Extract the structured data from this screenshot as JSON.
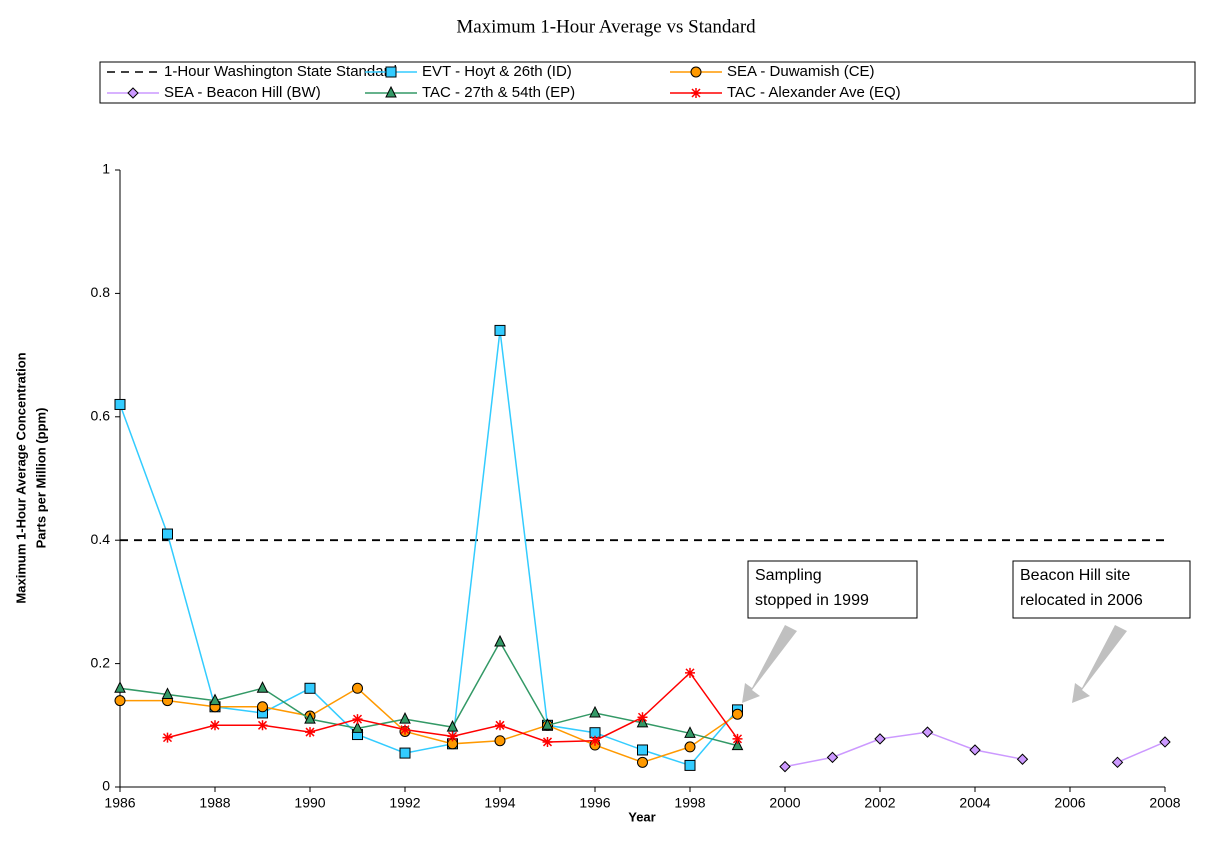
{
  "chart_data": {
    "type": "line",
    "title": "Maximum 1-Hour Average vs Standard",
    "xlabel": "Year",
    "ylabel": [
      "Maximum 1-Hour Average Concentration",
      "Parts per Million (ppm)"
    ],
    "x": [
      1986,
      1987,
      1988,
      1989,
      1990,
      1991,
      1992,
      1993,
      1994,
      1995,
      1996,
      1997,
      1998,
      1999,
      2000,
      2001,
      2002,
      2003,
      2004,
      2005,
      2006,
      2007,
      2008
    ],
    "xlim": [
      1986,
      2008
    ],
    "xticks": [
      1986,
      1988,
      1990,
      1992,
      1994,
      1996,
      1998,
      2000,
      2002,
      2004,
      2006,
      2008
    ],
    "ylim": [
      0,
      1
    ],
    "yticks": [
      0,
      0.2,
      0.4,
      0.6,
      0.8,
      1
    ],
    "series": [
      {
        "name": "1-Hour Washington State Standard",
        "color": "#000000",
        "dashed": true,
        "values": [
          0.4,
          0.4,
          0.4,
          0.4,
          0.4,
          0.4,
          0.4,
          0.4,
          0.4,
          0.4,
          0.4,
          0.4,
          0.4,
          0.4,
          0.4,
          0.4,
          0.4,
          0.4,
          0.4,
          0.4,
          0.4,
          0.4,
          0.4
        ]
      },
      {
        "name": "EVT - Hoyt & 26th (ID)",
        "color": "#33ccff",
        "marker": "square",
        "values": [
          0.62,
          0.41,
          0.13,
          0.12,
          0.16,
          0.085,
          0.055,
          0.07,
          0.74,
          0.1,
          0.088,
          0.06,
          0.035,
          0.125,
          null,
          null,
          null,
          null,
          null,
          null,
          null,
          null,
          null
        ]
      },
      {
        "name": "SEA - Duwamish (CE)",
        "color": "#ff9900",
        "marker": "circle",
        "values": [
          0.14,
          0.14,
          0.13,
          0.13,
          0.115,
          0.16,
          0.09,
          0.07,
          0.075,
          0.1,
          0.068,
          0.04,
          0.065,
          0.118,
          null,
          null,
          null,
          null,
          null,
          null,
          null,
          null,
          null
        ]
      },
      {
        "name": "SEA - Beacon Hill (BW)",
        "color": "#cc99ff",
        "marker": "diamond",
        "values": [
          null,
          null,
          null,
          null,
          null,
          null,
          null,
          null,
          null,
          null,
          null,
          null,
          null,
          null,
          0.033,
          0.048,
          0.078,
          0.089,
          0.06,
          0.045,
          null,
          0.04,
          0.073
        ]
      },
      {
        "name": "TAC - 27th & 54th (EP)",
        "color": "#339966",
        "marker": "triangle",
        "values": [
          0.16,
          0.15,
          0.14,
          0.16,
          0.11,
          0.095,
          0.11,
          0.097,
          0.235,
          0.1,
          0.12,
          0.104,
          0.087,
          0.067,
          null,
          null,
          null,
          null,
          null,
          null,
          null,
          null,
          null
        ]
      },
      {
        "name": "TAC - Alexander Ave (EQ)",
        "color": "#ff0000",
        "marker": "star",
        "values": [
          null,
          0.08,
          0.1,
          0.1,
          0.089,
          0.11,
          0.093,
          0.082,
          0.1,
          0.073,
          0.075,
          0.113,
          0.185,
          0.078,
          null,
          null,
          null,
          null,
          null,
          null,
          null,
          null,
          null
        ]
      }
    ],
    "annotations": [
      [
        "Sampling",
        "stopped in 1999"
      ],
      [
        "Beacon Hill site",
        "relocated in 2006"
      ]
    ]
  }
}
